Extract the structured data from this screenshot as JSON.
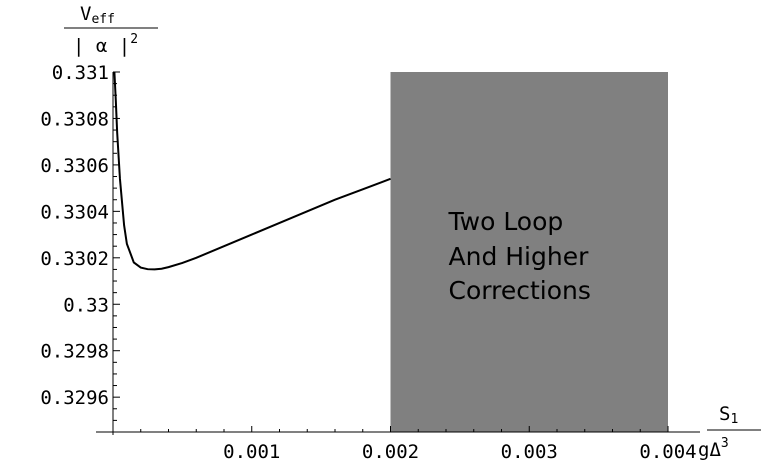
{
  "chart_data": {
    "type": "line",
    "title": "",
    "x_label": {
      "main": "S",
      "sub": "1",
      "denominator": "gΔ",
      "denominator_sup": "3"
    },
    "y_label": {
      "main": "V",
      "sub": "eff",
      "denominator": "| α |",
      "denominator_sup": "2"
    },
    "xlim": [
      0,
      0.004
    ],
    "ylim": [
      0.32945,
      0.331
    ],
    "x_ticks": [
      {
        "value": 0.001,
        "label": "0.001"
      },
      {
        "value": 0.002,
        "label": "0.002"
      },
      {
        "value": 0.003,
        "label": "0.003"
      },
      {
        "value": 0.004,
        "label": "0.004"
      }
    ],
    "y_ticks": [
      {
        "value": 0.3296,
        "label": "0.3296"
      },
      {
        "value": 0.3298,
        "label": "0.3298"
      },
      {
        "value": 0.33,
        "label": "0.33"
      },
      {
        "value": 0.3302,
        "label": "0.3302"
      },
      {
        "value": 0.3304,
        "label": "0.3304"
      },
      {
        "value": 0.3306,
        "label": "0.3306"
      },
      {
        "value": 0.3308,
        "label": "0.3308"
      },
      {
        "value": 0.331,
        "label": "0.331"
      }
    ],
    "series": [
      {
        "x": [
          1e-05,
          2e-05,
          3e-05,
          5e-05,
          8e-05,
          0.0001,
          0.00015,
          0.0002,
          0.00025,
          0.0003,
          0.00035,
          0.0004,
          0.0005,
          0.0006,
          0.0008,
          0.001,
          0.0012,
          0.0014,
          0.0016,
          0.0018,
          0.002
        ],
        "y": [
          0.331,
          0.33088,
          0.33074,
          0.33054,
          0.33034,
          0.33026,
          0.33018,
          0.330158,
          0.330151,
          0.33015,
          0.330153,
          0.33016,
          0.330178,
          0.3302,
          0.33025,
          0.3303,
          0.33035,
          0.3304,
          0.33045,
          0.330495,
          0.33054
        ],
        "color": "#000000"
      }
    ],
    "shaded_region": {
      "x_range": [
        0.002,
        0.004
      ],
      "color": "#808080",
      "label_lines": [
        "Two Loop",
        "And Higher",
        "Corrections"
      ]
    },
    "grid": false
  }
}
